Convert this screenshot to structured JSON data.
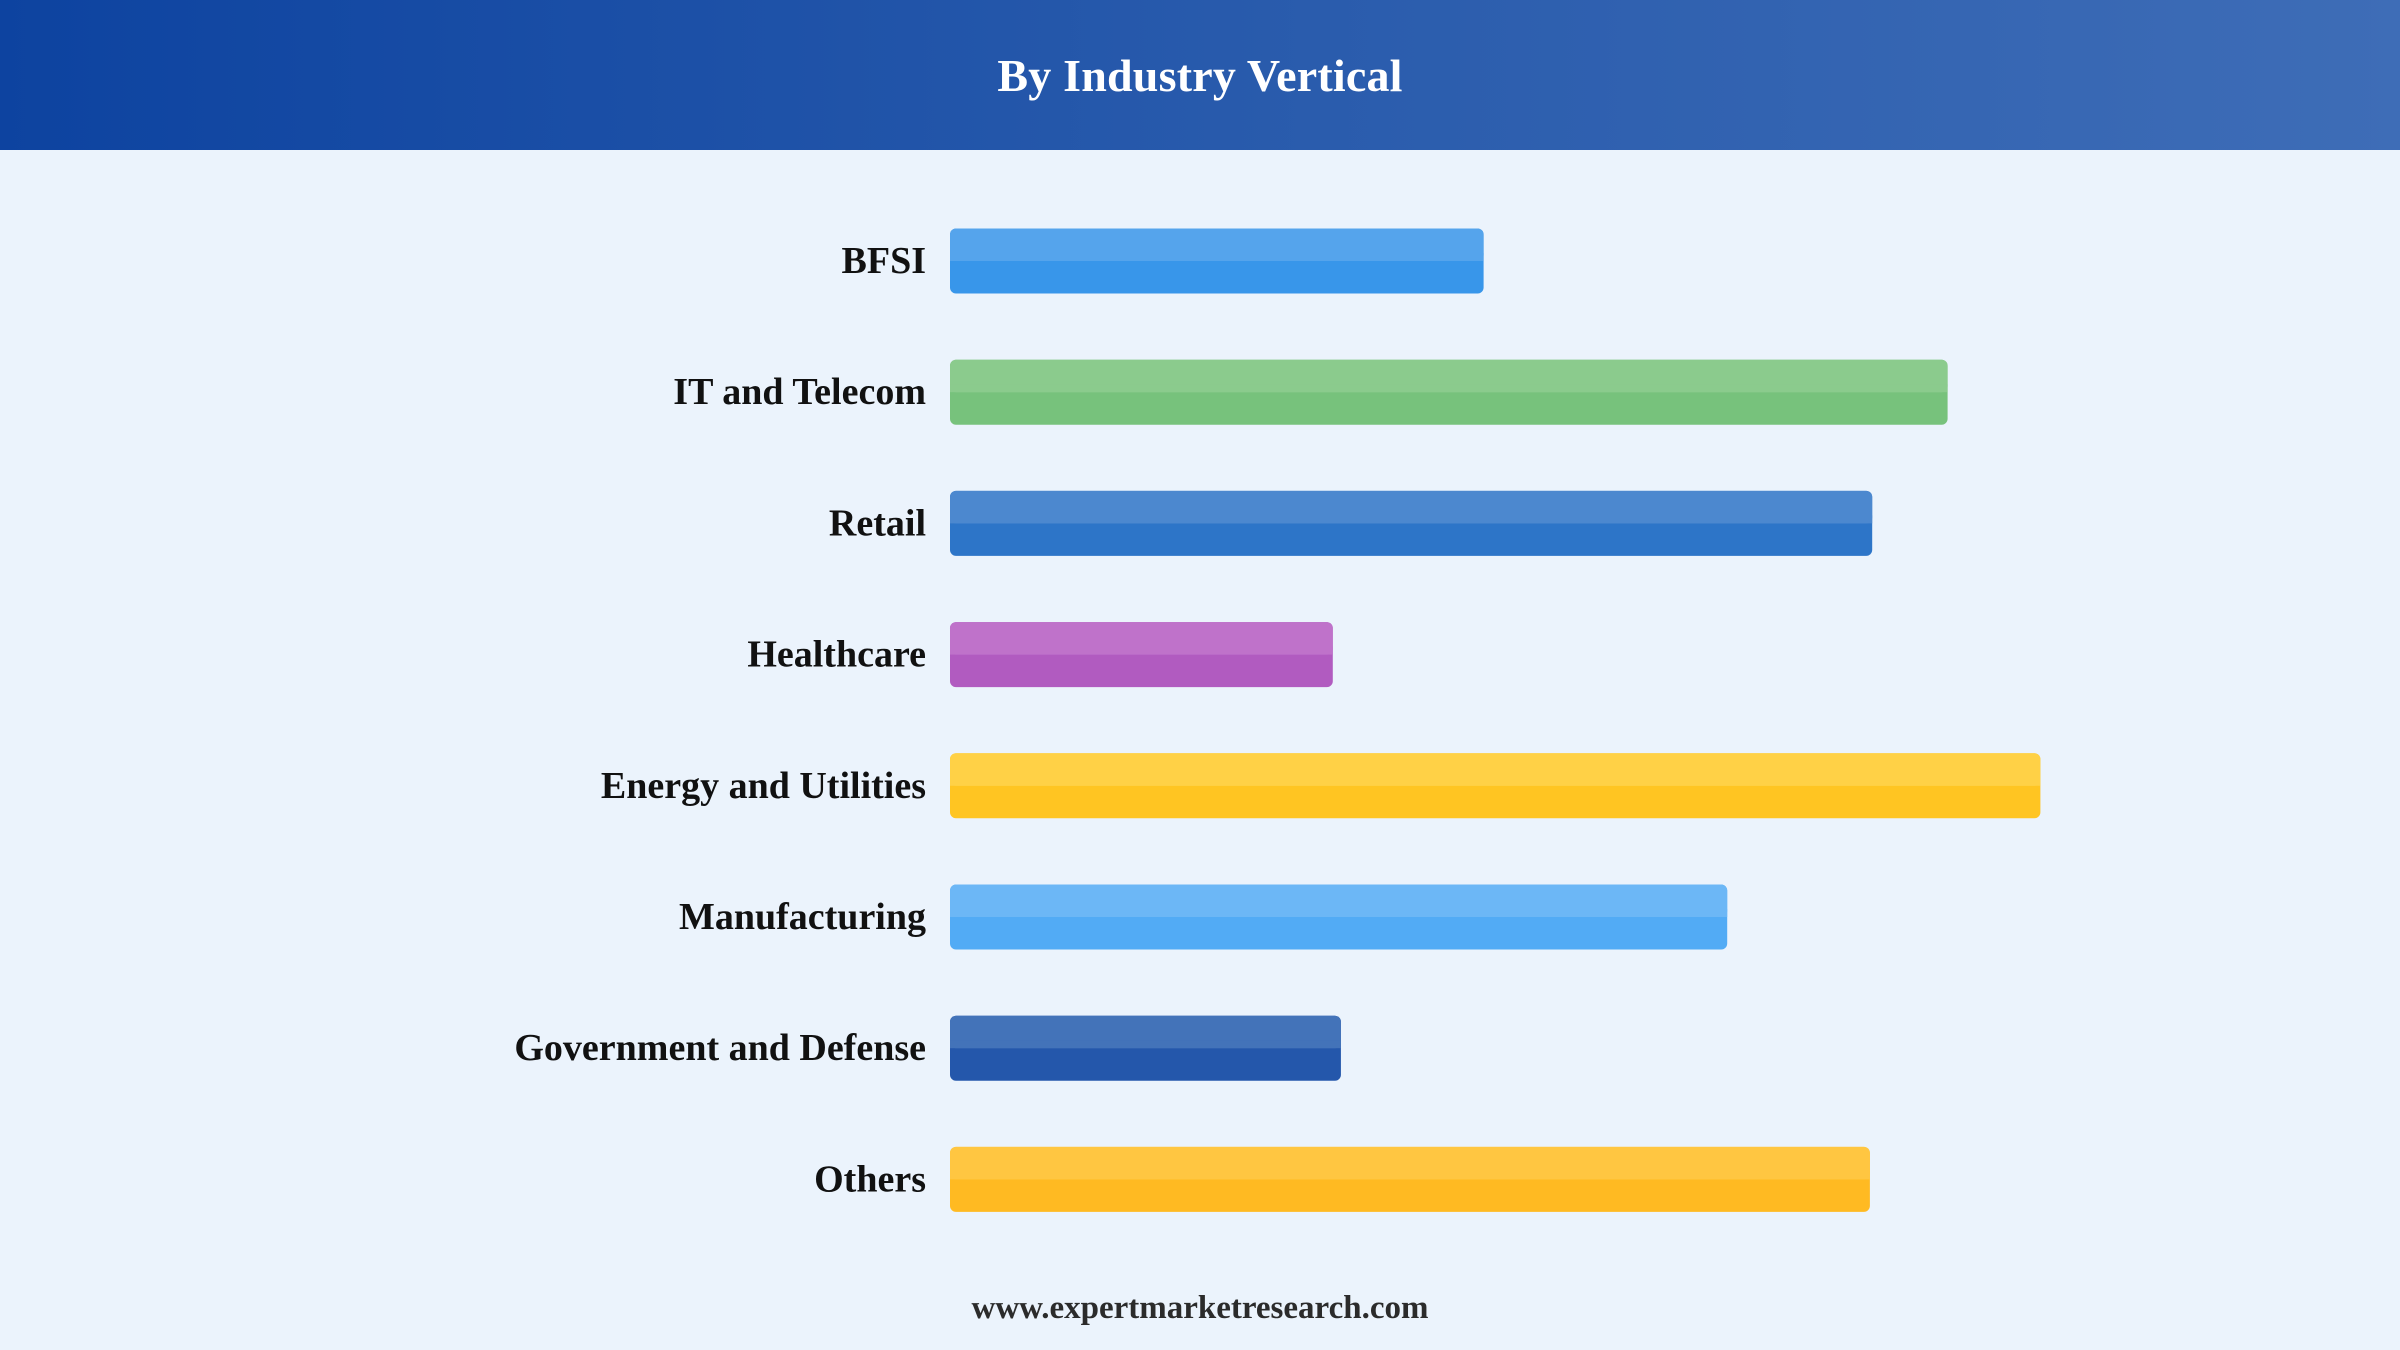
{
  "header": {
    "title": "By Industry Vertical"
  },
  "chart_data": {
    "type": "bar",
    "orientation": "horizontal",
    "title": "By Industry Vertical",
    "xlabel": "",
    "ylabel": "",
    "grid": false,
    "legend": "none",
    "xlim": [
      0,
      100
    ],
    "categories": [
      "BFSI",
      "IT and Telecom",
      "Retail",
      "Healthcare",
      "Energy and Utilities",
      "Manufacturing",
      "Government and Defense",
      "Others"
    ],
    "values": [
      46,
      86,
      79.5,
      33,
      94,
      67,
      33.7,
      79.3
    ],
    "colors": [
      "#3896ea",
      "#77c27c",
      "#2d75c8",
      "#b15bc0",
      "#ffc522",
      "#52abf5",
      "#2457ab",
      "#ffba22"
    ],
    "highlight_colors": [
      "#55a4ec",
      "#8bcb8d",
      "#4c88cf",
      "#bf72ca",
      "#ffd146",
      "#6cb7f6",
      "#4373b9",
      "#ffc641"
    ]
  },
  "footer": {
    "source": "www.expertmarketresearch.com"
  }
}
